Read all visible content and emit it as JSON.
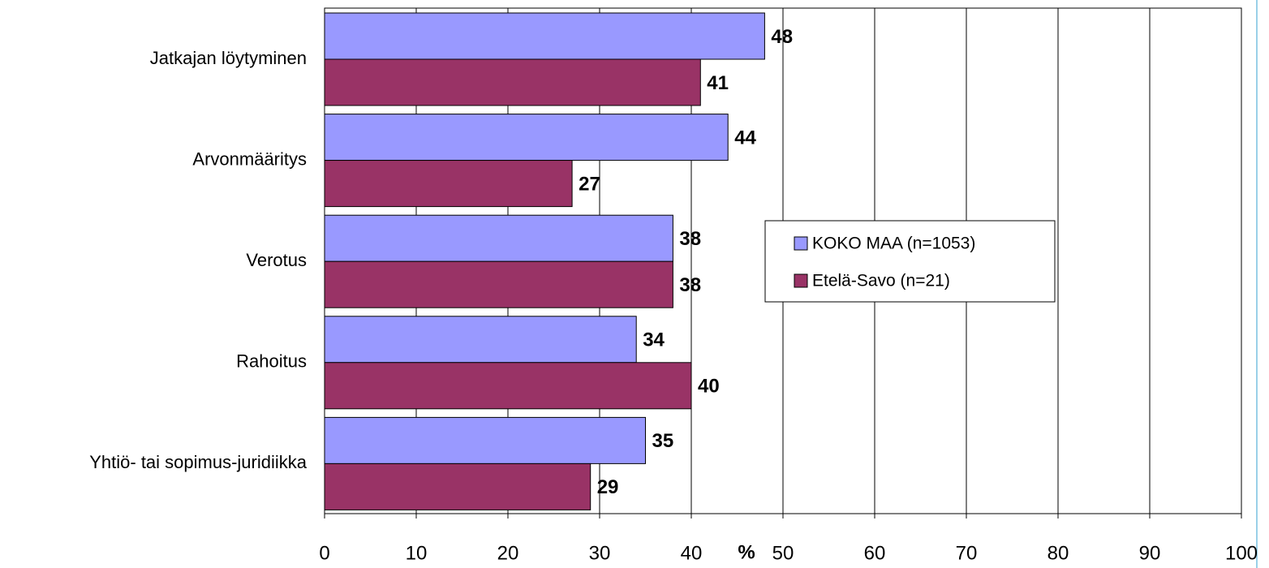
{
  "chart_data": {
    "type": "hbar",
    "x_label": "%",
    "categories": [
      "Jatkajan löytyminen",
      "Arvonmääritys",
      "Verotus",
      "Rahoitus",
      "Yhtiö- tai sopimus-juridiikka"
    ],
    "series": [
      {
        "name": "KOKO MAA (n=1053)",
        "color": "#9999ff",
        "values": [
          48,
          44,
          38,
          34,
          35
        ]
      },
      {
        "name": "Etelä-Savo (n=21)",
        "color": "#993366",
        "values": [
          41,
          27,
          38,
          40,
          29
        ]
      }
    ],
    "xlim": [
      0,
      100
    ],
    "xticks": [
      0,
      10,
      20,
      30,
      40,
      50,
      60,
      70,
      80,
      90,
      100
    ],
    "grid": true,
    "legend_position": "right"
  }
}
